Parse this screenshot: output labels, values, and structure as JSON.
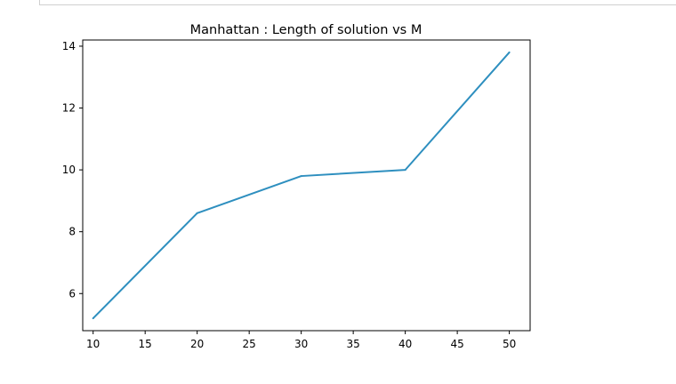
{
  "output_cell": {
    "chart_data": {
      "type": "line",
      "title": "Manhattan : Length of solution vs M",
      "xlabel": "",
      "ylabel": "",
      "x": [
        10,
        20,
        30,
        40,
        50
      ],
      "series": [
        {
          "values": [
            5.2,
            8.6,
            9.8,
            10.0,
            13.8
          ]
        }
      ],
      "xlim": [
        9,
        52
      ],
      "ylim": [
        4.8,
        14.2
      ],
      "xticks": [
        10,
        15,
        20,
        25,
        30,
        35,
        40,
        45,
        50
      ],
      "yticks": [
        6,
        8,
        10,
        12,
        14
      ],
      "grid": false,
      "line_color": "#2e8fbf"
    }
  }
}
